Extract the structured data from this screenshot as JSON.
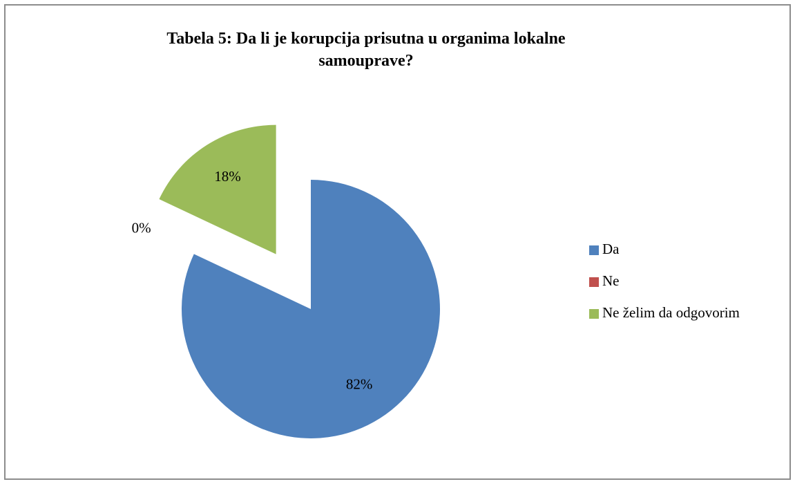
{
  "chart_data": {
    "type": "pie",
    "title": "Tabela 5: Da li je korupcija prisutna u organima lokalne samouprave?",
    "categories": [
      "Da",
      "Ne",
      "Ne želim da odgovorim"
    ],
    "values": [
      82,
      0,
      18
    ],
    "value_labels": [
      "82%",
      "0%",
      "18%"
    ],
    "colors": [
      "#4f81bd",
      "#c0504d",
      "#9bbb59"
    ],
    "exploded": [
      false,
      false,
      true
    ],
    "legend": "right"
  }
}
